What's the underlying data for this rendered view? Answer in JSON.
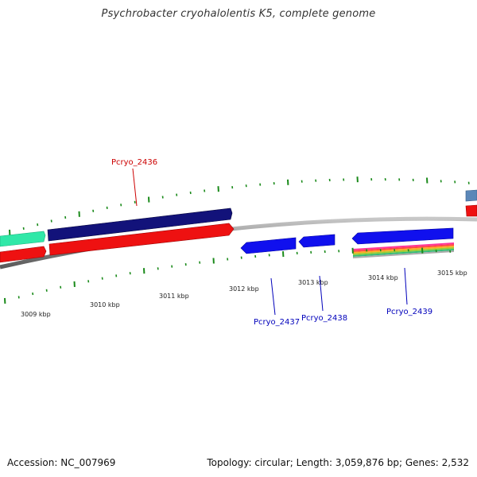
{
  "title": "Psychrobacter cryohalolentis K5, complete genome",
  "footer": {
    "accession": "Accession: NC_007969",
    "summary": "Topology: circular; Length: 3,059,876 bp; Genes: 2,532"
  },
  "colors": {
    "backbone": "#7a7a7a",
    "tick": "#1a8a1a",
    "gene_label_forward": "#cc0000",
    "gene_label_reverse": "#0000bb",
    "scale_label": "#222222"
  },
  "scale": {
    "labels": [
      "3009 kbp",
      "3010 kbp",
      "3011 kbp",
      "3012 kbp",
      "3013 kbp",
      "3014 kbp",
      "3015 kbp"
    ]
  },
  "genes": [
    {
      "label": "Pcryo_2436",
      "strand": "forward"
    },
    {
      "label": "Pcryo_2437",
      "strand": "reverse"
    },
    {
      "label": "Pcryo_2438",
      "strand": "reverse"
    },
    {
      "label": "Pcryo_2439",
      "strand": "reverse"
    }
  ]
}
